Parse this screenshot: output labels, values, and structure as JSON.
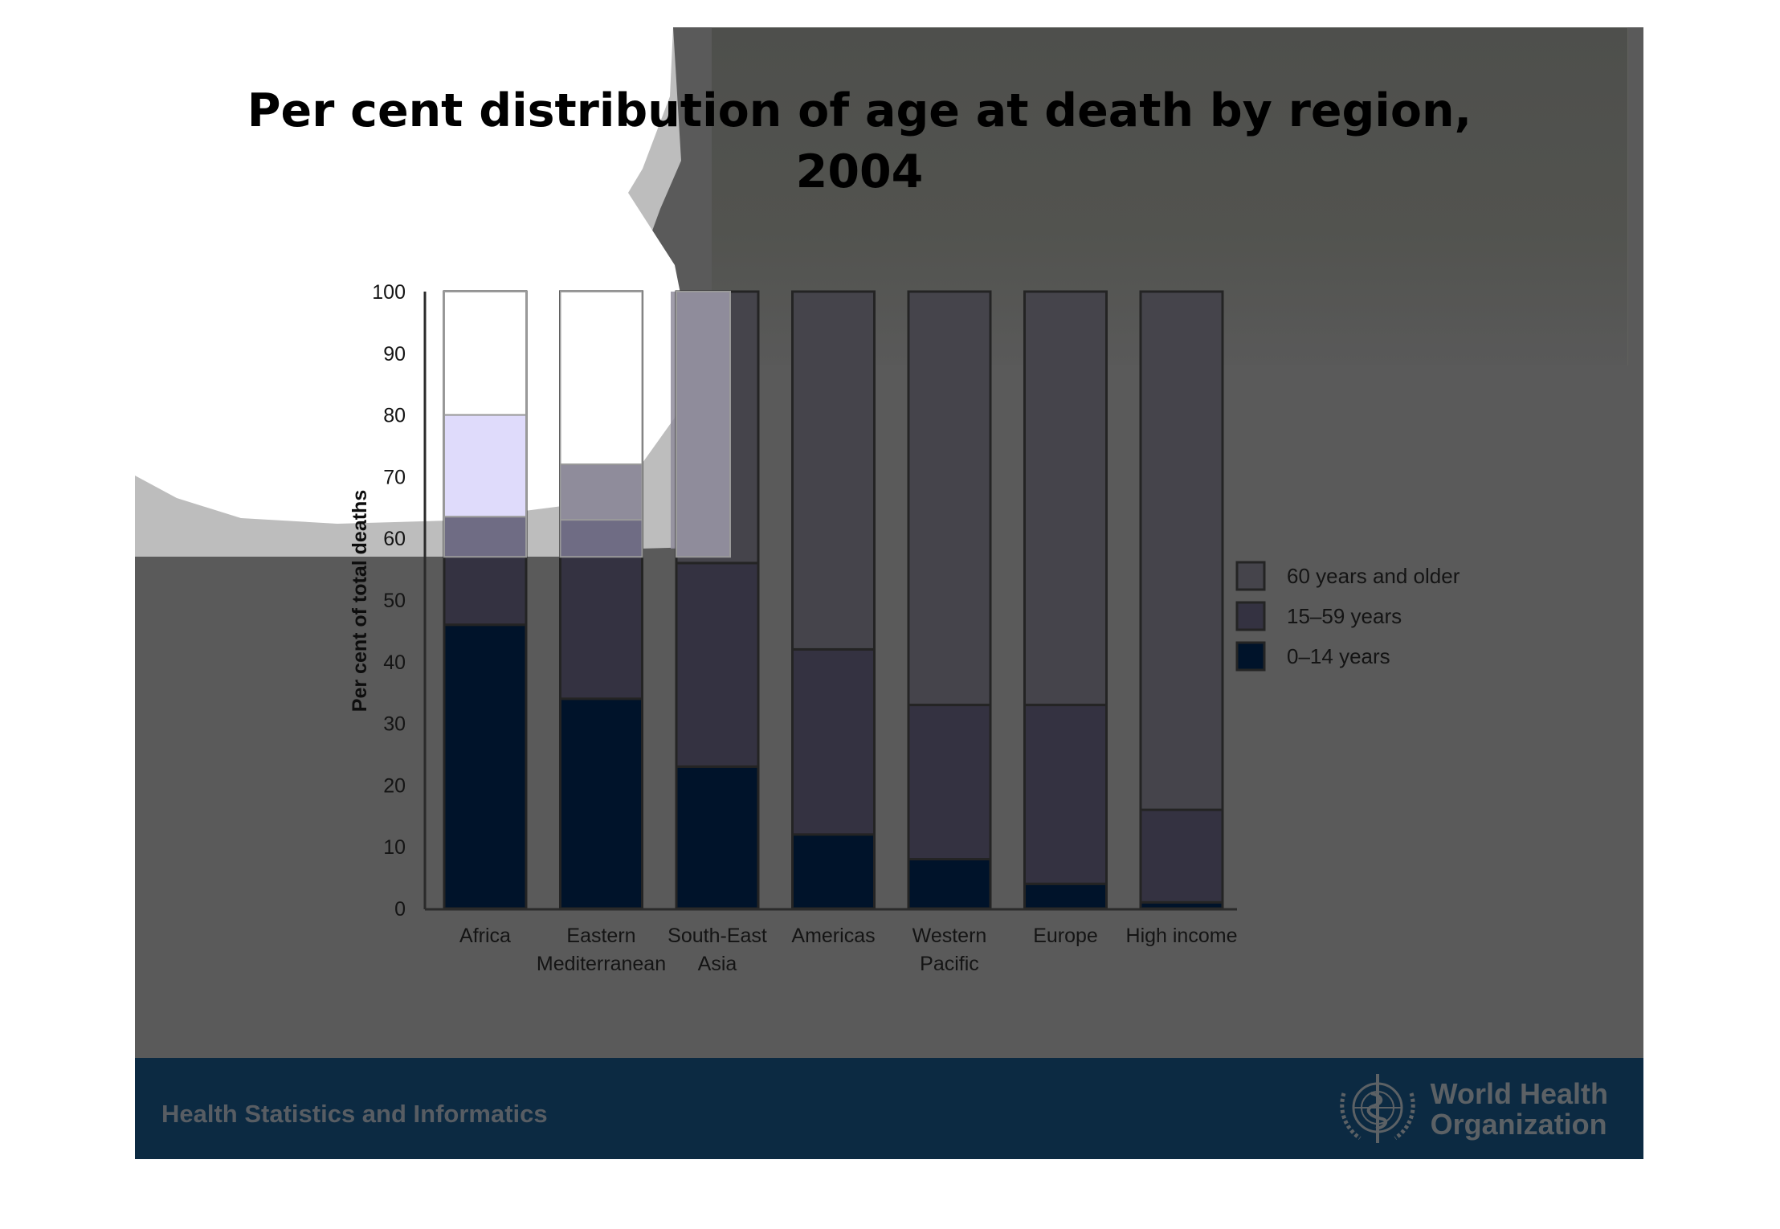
{
  "slide": {
    "footer_text": "Health Statistics and Informatics",
    "logo_line1": "World Health",
    "logo_line2": "Organization",
    "logo_icon": "who-emblem-icon"
  },
  "colors": {
    "slide_bg": "#5a5a5a",
    "footer_bg": "#0c2a42",
    "series_60_plus": "#45444b",
    "series_15_59": "#343241",
    "series_0_14": "#00132a",
    "overlay_light": "#bdbdbd"
  },
  "chart_data": {
    "type": "bar",
    "stacked": true,
    "title": "Per cent distribution of age at death by region, 2004",
    "title_lines": [
      "Per cent distribution of age at death by region,",
      "2004"
    ],
    "xlabel": "",
    "ylabel": "Per cent of total deaths",
    "ylim": [
      0,
      100
    ],
    "yticks": [
      0,
      10,
      20,
      30,
      40,
      50,
      60,
      70,
      80,
      90,
      100
    ],
    "grid": false,
    "legend_position": "right",
    "categories": [
      "Africa",
      "Eastern Mediterranean",
      "South-East Asia",
      "Americas",
      "Western Pacific",
      "Europe",
      "High income"
    ],
    "category_lines": [
      [
        "Africa"
      ],
      [
        "Eastern",
        "Mediterranean"
      ],
      [
        "South-East",
        "Asia"
      ],
      [
        "Americas"
      ],
      [
        "Western",
        "Pacific"
      ],
      [
        "Europe"
      ],
      [
        "High income"
      ]
    ],
    "series": [
      {
        "name": "0–14 years",
        "values": [
          46,
          34,
          23,
          12,
          8,
          4,
          1
        ]
      },
      {
        "name": "15–59 years",
        "values": [
          17,
          29,
          33,
          30,
          25,
          29,
          15
        ]
      },
      {
        "name": "60 years and older",
        "values": [
          37,
          37,
          44,
          58,
          67,
          67,
          84
        ]
      }
    ],
    "legend": [
      "60 years and older",
      "15–59 years",
      "0–14 years"
    ]
  }
}
